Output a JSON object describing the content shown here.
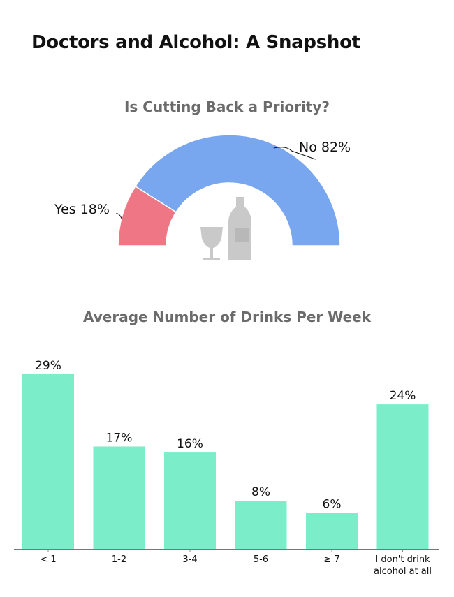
{
  "page": {
    "title": "Doctors and Alcohol: A Snapshot"
  },
  "chart_data": [
    {
      "type": "pie",
      "variant": "half-donut",
      "title": "Is Cutting Back a Priority?",
      "slices": [
        {
          "label": "Yes",
          "value": 18,
          "display": "Yes 18%",
          "color": "#ef7785"
        },
        {
          "label": "No",
          "value": 82,
          "display": "No 82%",
          "color": "#78a7ef"
        }
      ],
      "center_icon": "wine-glass-and-bottle-icon"
    },
    {
      "type": "bar",
      "title": "Average Number of Drinks Per Week",
      "categories": [
        "< 1",
        "1-2",
        "3-4",
        "5-6",
        "≥ 7",
        "I don't drink alcohol at all"
      ],
      "category_lines": [
        [
          "< 1"
        ],
        [
          "1-2"
        ],
        [
          "3-4"
        ],
        [
          "5-6"
        ],
        [
          "≥ 7"
        ],
        [
          "I don't drink",
          "alcohol at all"
        ]
      ],
      "values": [
        29,
        17,
        16,
        8,
        6,
        24
      ],
      "value_labels": [
        "29%",
        "17%",
        "16%",
        "8%",
        "6%",
        "24%"
      ],
      "unit": "%",
      "ylim": [
        0,
        29
      ],
      "color": "#7beec9"
    }
  ]
}
